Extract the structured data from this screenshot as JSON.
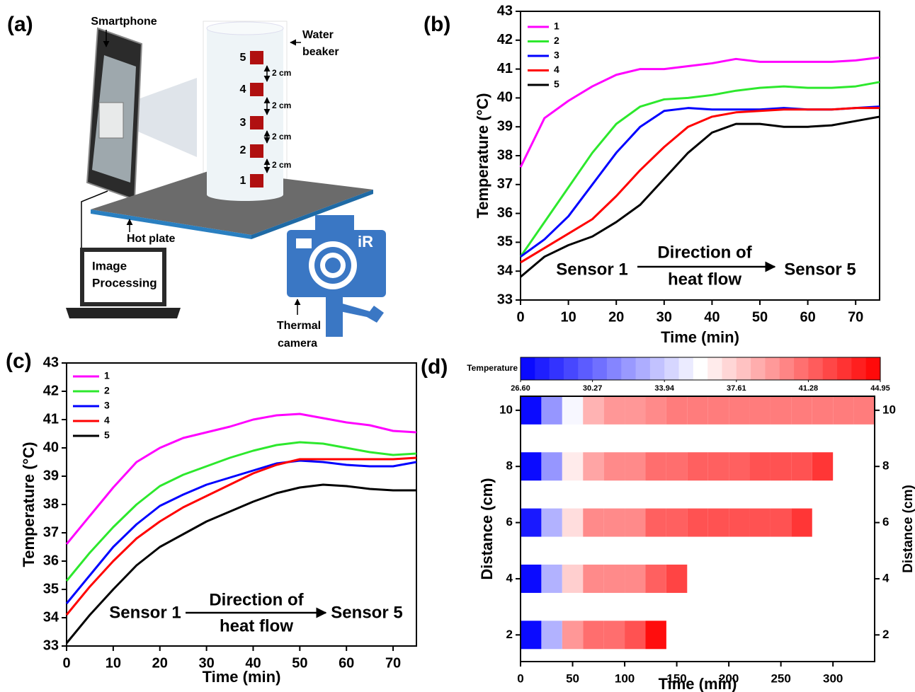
{
  "diagram": {
    "panel_label": "(a)",
    "smartphone": "Smartphone",
    "beaker": [
      "Water",
      "beaker"
    ],
    "sensors": [
      "5",
      "4",
      "3",
      "2",
      "1"
    ],
    "spacing": [
      "2 cm",
      "2 cm",
      "2 cm",
      "2 cm"
    ],
    "hot_plate": "Hot plate",
    "laptop": [
      "Image",
      "Processing"
    ],
    "camera_logo": "iR",
    "camera": [
      "Thermal",
      "camera"
    ]
  },
  "chart_data": [
    {
      "type": "line",
      "panel_label": "(b)",
      "xlabel": "Time (min)",
      "ylabel": "Temperature (°C)",
      "x": [
        0,
        5,
        10,
        15,
        20,
        25,
        30,
        35,
        40,
        45,
        50,
        55,
        60,
        65,
        70,
        75
      ],
      "xlim": [
        0,
        75
      ],
      "xticks": [
        0,
        10,
        20,
        30,
        40,
        50,
        60,
        70
      ],
      "ylim": [
        33,
        43
      ],
      "yticks": [
        33,
        34,
        35,
        36,
        37,
        38,
        39,
        40,
        41,
        42,
        43
      ],
      "series": [
        {
          "name": "1",
          "color": "#ff00ff",
          "values": [
            37.6,
            39.3,
            39.9,
            40.4,
            40.8,
            41.0,
            41.0,
            41.1,
            41.2,
            41.35,
            41.25,
            41.25,
            41.25,
            41.25,
            41.3,
            41.4
          ]
        },
        {
          "name": "2",
          "color": "#2de82d",
          "values": [
            34.5,
            35.7,
            36.9,
            38.1,
            39.1,
            39.7,
            39.95,
            40.0,
            40.1,
            40.25,
            40.35,
            40.4,
            40.35,
            40.35,
            40.4,
            40.55
          ]
        },
        {
          "name": "3",
          "color": "#0000ff",
          "values": [
            34.5,
            35.1,
            35.9,
            37.0,
            38.1,
            39.0,
            39.55,
            39.65,
            39.6,
            39.6,
            39.6,
            39.65,
            39.6,
            39.6,
            39.65,
            39.7
          ]
        },
        {
          "name": "4",
          "color": "#ff0000",
          "values": [
            34.3,
            34.8,
            35.3,
            35.8,
            36.6,
            37.5,
            38.3,
            39.0,
            39.35,
            39.5,
            39.55,
            39.6,
            39.6,
            39.6,
            39.65,
            39.65
          ]
        },
        {
          "name": "5",
          "color": "#000000",
          "values": [
            33.8,
            34.5,
            34.9,
            35.2,
            35.7,
            36.3,
            37.2,
            38.1,
            38.8,
            39.1,
            39.1,
            39.0,
            39.0,
            39.05,
            39.2,
            39.35
          ]
        }
      ],
      "annotations": {
        "start": "Sensor 1",
        "direction": [
          "Direction of",
          "heat flow"
        ],
        "end": "Sensor 5"
      }
    },
    {
      "type": "line",
      "panel_label": "(c)",
      "xlabel": "Time (min)",
      "ylabel": "Temperature (°C)",
      "x": [
        0,
        5,
        10,
        15,
        20,
        25,
        30,
        35,
        40,
        45,
        50,
        55,
        60,
        65,
        70,
        75
      ],
      "xlim": [
        0,
        75
      ],
      "xticks": [
        0,
        10,
        20,
        30,
        40,
        50,
        60,
        70
      ],
      "ylim": [
        33,
        43
      ],
      "yticks": [
        33,
        34,
        35,
        36,
        37,
        38,
        39,
        40,
        41,
        42,
        43
      ],
      "series": [
        {
          "name": "1",
          "color": "#ff00ff",
          "values": [
            36.6,
            37.6,
            38.6,
            39.5,
            40.0,
            40.35,
            40.55,
            40.75,
            41.0,
            41.15,
            41.2,
            41.05,
            40.9,
            40.8,
            40.6,
            40.55
          ]
        },
        {
          "name": "2",
          "color": "#2de82d",
          "values": [
            35.3,
            36.3,
            37.2,
            38.0,
            38.65,
            39.05,
            39.35,
            39.65,
            39.9,
            40.1,
            40.2,
            40.15,
            40.0,
            39.85,
            39.75,
            39.8
          ]
        },
        {
          "name": "3",
          "color": "#0000ff",
          "values": [
            34.5,
            35.5,
            36.5,
            37.3,
            37.95,
            38.35,
            38.7,
            38.95,
            39.2,
            39.45,
            39.55,
            39.5,
            39.4,
            39.35,
            39.35,
            39.5
          ]
        },
        {
          "name": "4",
          "color": "#ff0000",
          "values": [
            34.1,
            35.1,
            36.0,
            36.8,
            37.4,
            37.9,
            38.3,
            38.7,
            39.1,
            39.4,
            39.6,
            39.6,
            39.6,
            39.6,
            39.6,
            39.65
          ]
        },
        {
          "name": "5",
          "color": "#000000",
          "values": [
            33.1,
            34.1,
            35.0,
            35.85,
            36.5,
            36.95,
            37.4,
            37.75,
            38.1,
            38.4,
            38.6,
            38.7,
            38.65,
            38.55,
            38.5,
            38.5
          ]
        }
      ],
      "annotations": {
        "start": "Sensor 1",
        "direction": [
          "Direction of",
          "heat flow"
        ],
        "end": "Sensor 5"
      }
    },
    {
      "type": "heatmap",
      "panel_label": "(d)",
      "xlabel": "Time (min)",
      "ylabel": "Distance (cm)",
      "y2label": "Distance (cm)",
      "xbins": [
        0,
        20,
        40,
        60,
        80,
        100,
        120,
        140,
        160,
        180,
        200,
        220,
        240,
        260,
        280,
        300,
        320,
        340
      ],
      "xlim": [
        0,
        340
      ],
      "xticks": [
        0,
        50,
        100,
        150,
        200,
        250,
        300
      ],
      "ylim": [
        1.05,
        10.5
      ],
      "yticks": [
        2,
        4,
        6,
        8,
        10
      ],
      "y2lim": [
        1.05,
        10.5
      ],
      "y2ticks": [
        2,
        4,
        6,
        8,
        10
      ],
      "rows": [
        {
          "y": 2,
          "values": [
            27.0,
            33.0,
            39.5,
            41.0,
            41.0,
            42.0,
            44.5,
            null,
            null,
            null,
            null,
            null,
            null,
            null,
            null,
            null,
            null
          ]
        },
        {
          "y": 4,
          "values": [
            27.0,
            33.0,
            37.5,
            40.0,
            40.0,
            40.0,
            41.5,
            42.5,
            null,
            null,
            null,
            null,
            null,
            null,
            null,
            null,
            null
          ]
        },
        {
          "y": 6,
          "values": [
            27.5,
            33.0,
            37.0,
            40.0,
            40.0,
            40.0,
            41.5,
            41.5,
            42.0,
            42.0,
            42.0,
            42.0,
            42.0,
            43.0,
            null,
            null,
            null
          ]
        },
        {
          "y": 8,
          "values": [
            27.0,
            32.0,
            36.5,
            39.0,
            40.0,
            40.0,
            41.0,
            41.0,
            41.5,
            41.5,
            41.5,
            42.0,
            42.0,
            42.0,
            43.0,
            null,
            null
          ]
        },
        {
          "y": 10,
          "values": [
            27.0,
            32.0,
            35.5,
            38.5,
            39.5,
            39.5,
            40.0,
            40.5,
            40.5,
            40.5,
            40.5,
            40.5,
            40.5,
            40.5,
            40.5,
            40.5,
            40.5
          ]
        }
      ],
      "colorbar": {
        "label": "Temperature",
        "lim": [
          26.6,
          44.95
        ],
        "colormap": [
          "#0000ff",
          "#ffffff",
          "#ff0000"
        ],
        "ticks": [
          {
            "value": 26.6,
            "label": "26.60"
          },
          30.27,
          33.94,
          37.61,
          41.28,
          44.95
        ]
      }
    }
  ]
}
